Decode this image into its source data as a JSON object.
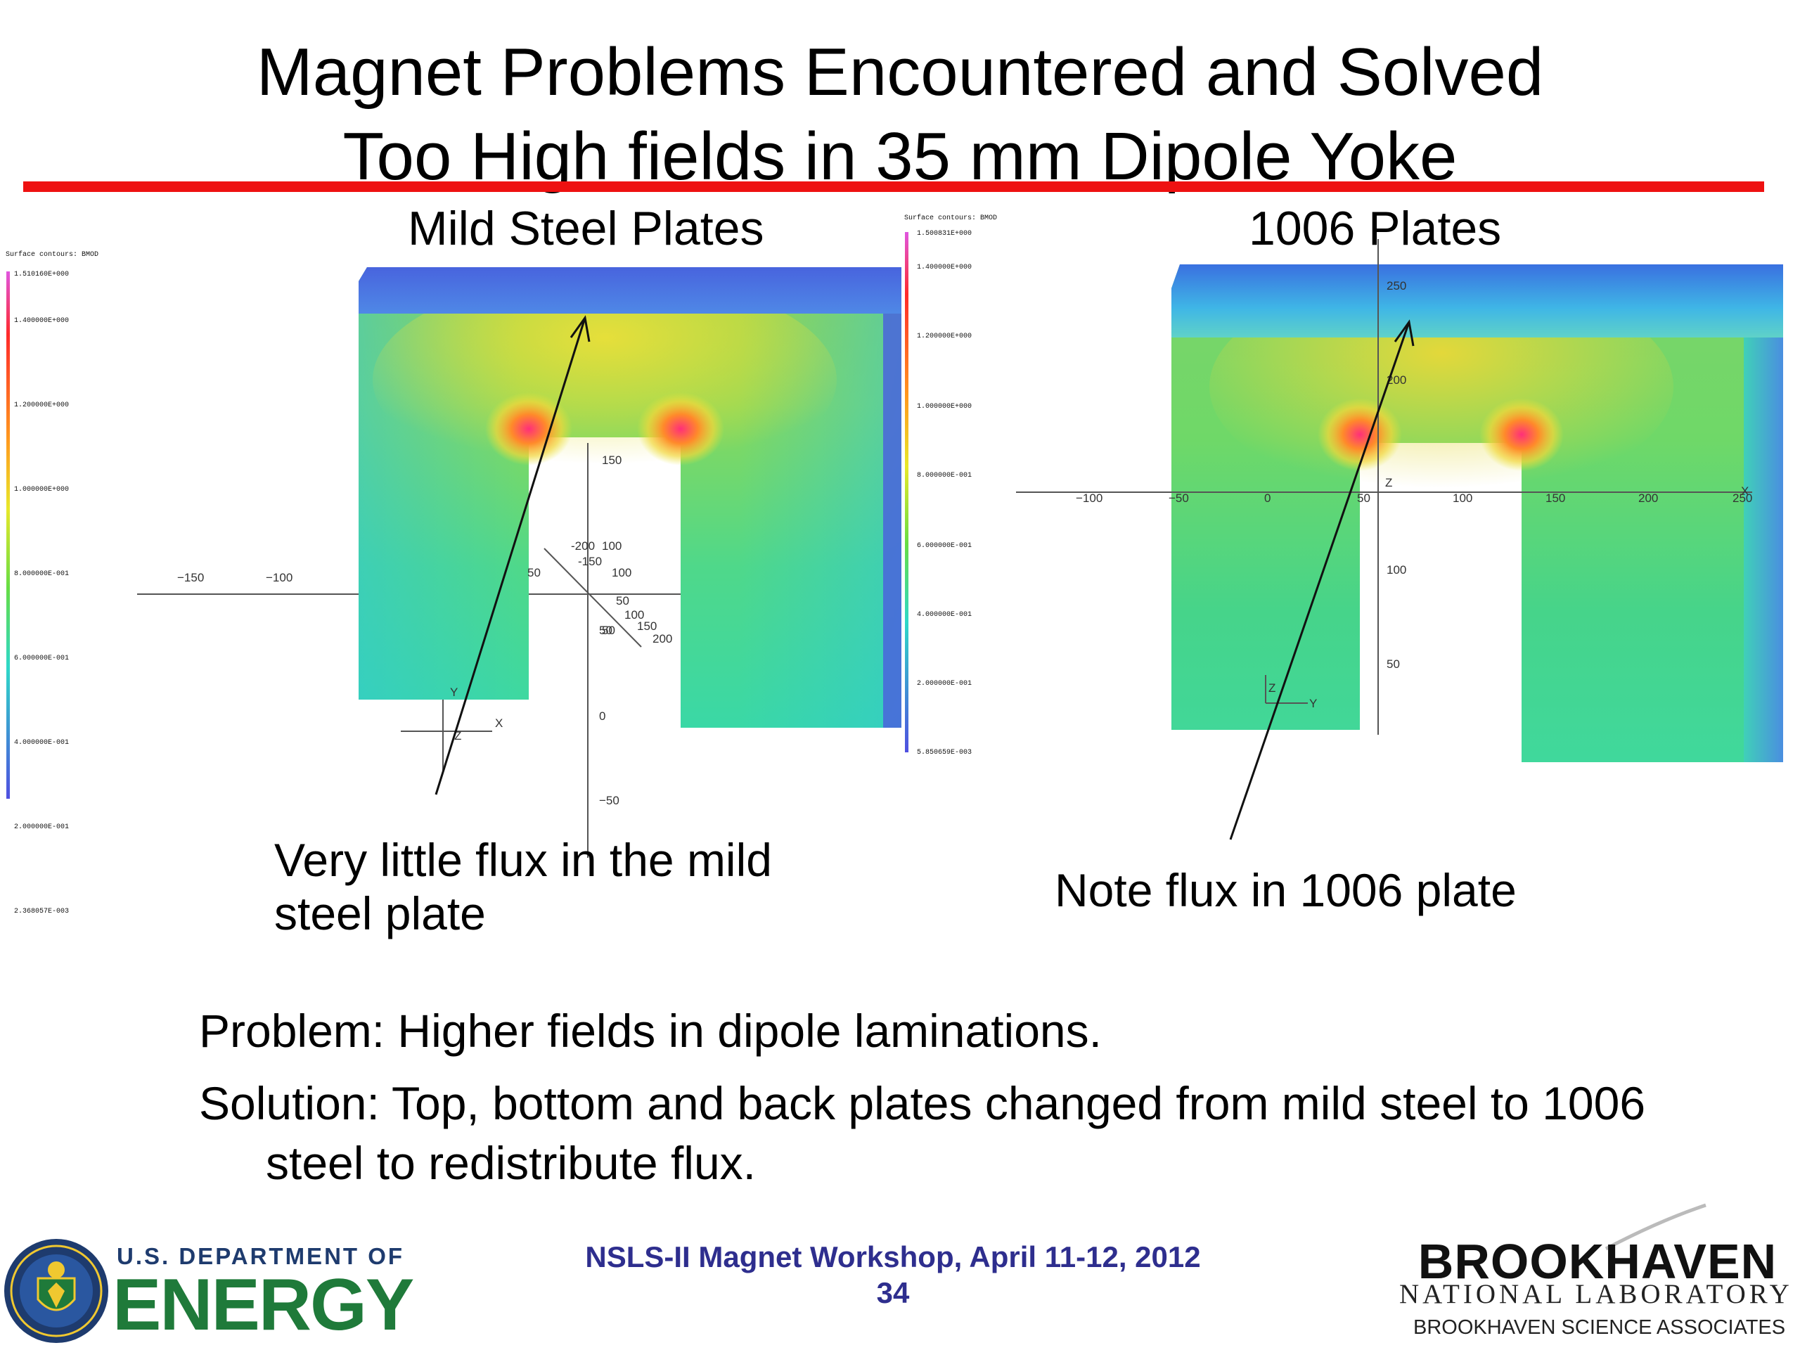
{
  "slide": {
    "title_line1": "Magnet Problems Encountered and Solved",
    "title_line2": "Too High fields in 35 mm Dipole Yoke"
  },
  "left_panel": {
    "label": "Mild Steel Plates",
    "legend_title": "Surface contours: BMOD",
    "legend_values": [
      "1.510160E+000",
      "1.400000E+000",
      "1.200000E+000",
      "1.000000E+000",
      "8.000000E-001",
      "6.000000E-001",
      "4.000000E-001",
      "2.000000E-001",
      "2.368057E-003"
    ],
    "axis_labels": [
      "−150",
      "−100",
      "150",
      "100",
      "50",
      "0",
      "−50",
      "-200",
      "-150",
      "50",
      "100",
      "150",
      "200",
      "X",
      "Y",
      "Z",
      "50",
      "100",
      "50"
    ],
    "caption_line1": "Very little flux in the mild",
    "caption_line2": "steel plate"
  },
  "right_panel": {
    "label": "1006 Plates",
    "legend_title": "Surface contours: BMOD",
    "legend_values": [
      "1.500831E+000",
      "1.400000E+000",
      "1.200000E+000",
      "1.000000E+000",
      "8.000000E-001",
      "6.000000E-001",
      "4.000000E-001",
      "2.000000E-001",
      "5.850659E-003"
    ],
    "axis_labels": [
      "−100",
      "−50",
      "0",
      "50",
      "100",
      "150",
      "200",
      "250",
      "250",
      "200",
      "100",
      "50",
      "Z",
      "X",
      "Z",
      "Y"
    ],
    "caption": "Note flux in 1006 plate"
  },
  "problem_text": "Problem: Higher fields in dipole laminations.",
  "solution_line1": "Solution: Top, bottom and back plates changed from mild steel to 1006",
  "solution_line2": "steel to redistribute flux.",
  "footer": {
    "doe_line1": "U.S. DEPARTMENT OF",
    "doe_line2": "ENERGY",
    "workshop": "NSLS-II Magnet Workshop, April 11-12, 2012",
    "page_number": "34",
    "bnl_line1": "BROOKHAVEN",
    "bnl_line2": "NATIONAL LABORATORY",
    "bnl_line3": "BROOKHAVEN SCIENCE ASSOCIATES"
  },
  "colors": {
    "title_rule": "#ee1111",
    "footer_text": "#2e2e8e",
    "doe_green": "#1f7a3a",
    "doe_navy": "#1e3b6e"
  }
}
